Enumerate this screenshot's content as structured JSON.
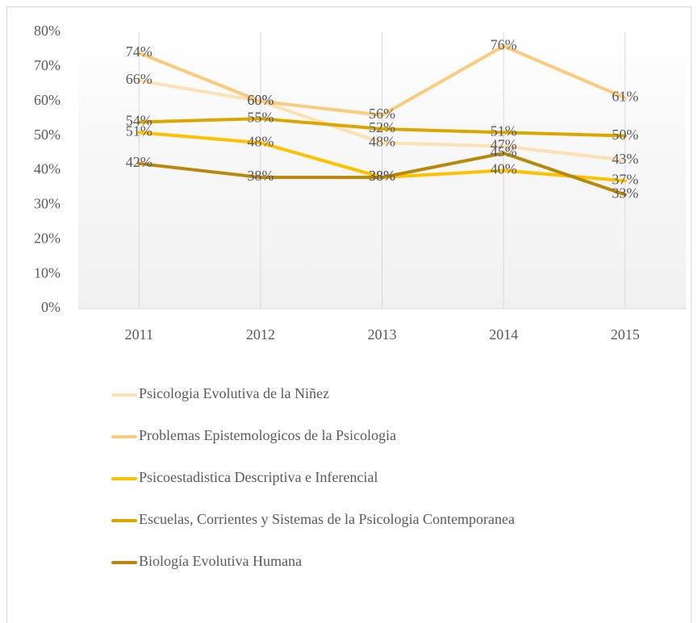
{
  "chart_data": {
    "type": "line",
    "categories": [
      "2011",
      "2012",
      "2013",
      "2014",
      "2015"
    ],
    "series": [
      {
        "name": "Psicologia Evolutiva de la Niñez",
        "color": "#fde0b3",
        "values": [
          66,
          60,
          48,
          47,
          43
        ],
        "value_labels": [
          "66%",
          "60%",
          "48%",
          "47%",
          "43%"
        ]
      },
      {
        "name": "Problemas Epistemologicos de la Psicologia",
        "color": "#fbca7c",
        "values": [
          74,
          60,
          56,
          76,
          61
        ],
        "value_labels": [
          "74%",
          "60%",
          "56%",
          "76%",
          "61%"
        ]
      },
      {
        "name": "Psicoestadistica Descriptiva e Inferencial",
        "color": "#ffc000",
        "values": [
          51,
          48,
          38,
          40,
          37
        ],
        "value_labels": [
          "51%",
          "48%",
          "38%",
          "40%",
          "37%"
        ]
      },
      {
        "name": "Escuelas, Corrientes y Sistemas de la Psicologia Contemporanea",
        "color": "#dca500",
        "values": [
          54,
          55,
          52,
          51,
          50
        ],
        "value_labels": [
          "54%",
          "55%",
          "52%",
          "51%",
          "50%"
        ]
      },
      {
        "name": "Biología Evolutiva Humana",
        "color": "#b8870b",
        "values": [
          42,
          38,
          38,
          45,
          33
        ],
        "value_labels": [
          "42%",
          "38%",
          "38%",
          "45%",
          "33%"
        ]
      }
    ],
    "ylim": [
      0,
      80
    ],
    "yticks": [
      {
        "value": 0,
        "label": "0%"
      },
      {
        "value": 10,
        "label": "10%"
      },
      {
        "value": 20,
        "label": "20%"
      },
      {
        "value": 30,
        "label": "30%"
      },
      {
        "value": 40,
        "label": "40%"
      },
      {
        "value": 50,
        "label": "50%"
      },
      {
        "value": 60,
        "label": "60%"
      },
      {
        "value": 70,
        "label": "70%"
      },
      {
        "value": 80,
        "label": "80%"
      }
    ],
    "grid": true,
    "legend": "bottom"
  }
}
